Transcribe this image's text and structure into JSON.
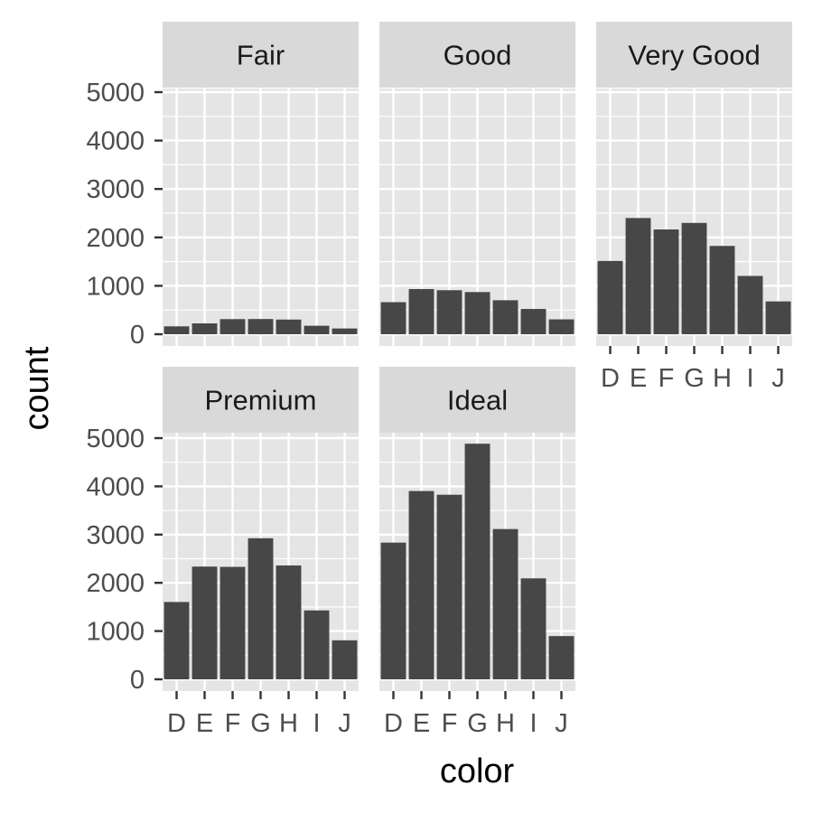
{
  "chart_data": {
    "type": "bar",
    "xlabel": "color",
    "ylabel": "count",
    "categories": [
      "D",
      "E",
      "F",
      "G",
      "H",
      "I",
      "J"
    ],
    "ylim": [
      0,
      5000
    ],
    "yticks": [
      0,
      1000,
      2000,
      3000,
      4000,
      5000
    ],
    "grid": true,
    "colors": {
      "bar": "#474747",
      "panel": "#e5e5e5",
      "grid": "#ffffff",
      "strip": "#d9d9d9",
      "tick": "#333333"
    },
    "facets": [
      {
        "label": "Fair",
        "values": [
          163,
          224,
          312,
          314,
          303,
          175,
          119
        ]
      },
      {
        "label": "Good",
        "values": [
          662,
          933,
          909,
          871,
          702,
          522,
          307
        ]
      },
      {
        "label": "Very Good",
        "values": [
          1513,
          2400,
          2164,
          2299,
          1824,
          1204,
          678
        ]
      },
      {
        "label": "Premium",
        "values": [
          1603,
          2337,
          2331,
          2924,
          2360,
          1428,
          808
        ]
      },
      {
        "label": "Ideal",
        "values": [
          2834,
          3903,
          3826,
          4884,
          3115,
          2093,
          896
        ]
      }
    ]
  }
}
